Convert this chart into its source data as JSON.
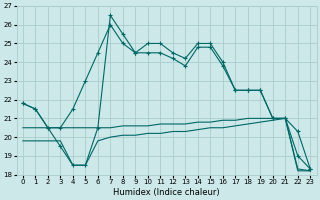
{
  "title": "",
  "xlabel": "Humidex (Indice chaleur)",
  "ylabel": "",
  "bg_color": "#cce8e8",
  "grid_color": "#aacccc",
  "line_color": "#006666",
  "xlim": [
    -0.5,
    23.5
  ],
  "ylim": [
    18,
    27
  ],
  "xticks": [
    0,
    1,
    2,
    3,
    4,
    5,
    6,
    7,
    8,
    9,
    10,
    11,
    12,
    13,
    14,
    15,
    16,
    17,
    18,
    19,
    20,
    21,
    22,
    23
  ],
  "yticks": [
    18,
    19,
    20,
    21,
    22,
    23,
    24,
    25,
    26,
    27
  ],
  "series1_x": [
    0,
    1,
    2,
    3,
    4,
    5,
    6,
    7,
    8,
    9,
    10,
    11,
    12,
    13,
    14,
    15,
    16,
    17,
    18,
    19,
    20,
    21,
    22,
    23
  ],
  "series1_y": [
    21.8,
    21.5,
    20.5,
    20.5,
    21.5,
    23.0,
    24.5,
    26.0,
    25.0,
    24.5,
    25.0,
    25.0,
    24.5,
    24.2,
    25.0,
    25.0,
    24.0,
    22.5,
    22.5,
    22.5,
    21.0,
    21.0,
    20.3,
    18.3
  ],
  "series2_x": [
    0,
    1,
    2,
    3,
    4,
    5,
    6,
    7,
    8,
    9,
    10,
    11,
    12,
    13,
    14,
    15,
    16,
    17,
    18,
    19,
    20,
    21,
    22,
    23
  ],
  "series2_y": [
    21.8,
    21.5,
    20.5,
    19.5,
    18.5,
    18.5,
    20.5,
    26.5,
    25.5,
    24.5,
    24.5,
    24.5,
    24.2,
    23.8,
    24.8,
    24.8,
    23.8,
    22.5,
    22.5,
    22.5,
    21.0,
    21.0,
    19.0,
    18.3
  ],
  "series3_x": [
    0,
    1,
    2,
    3,
    4,
    5,
    6,
    7,
    8,
    9,
    10,
    11,
    12,
    13,
    14,
    15,
    16,
    17,
    18,
    19,
    20,
    21,
    22,
    23
  ],
  "series3_y": [
    20.5,
    20.5,
    20.5,
    20.5,
    20.5,
    20.5,
    20.5,
    20.5,
    20.6,
    20.6,
    20.6,
    20.7,
    20.7,
    20.7,
    20.8,
    20.8,
    20.9,
    20.9,
    21.0,
    21.0,
    21.0,
    21.0,
    18.2,
    18.2
  ],
  "series4_x": [
    0,
    1,
    2,
    3,
    4,
    5,
    6,
    7,
    8,
    9,
    10,
    11,
    12,
    13,
    14,
    15,
    16,
    17,
    18,
    19,
    20,
    21,
    22,
    23
  ],
  "series4_y": [
    19.8,
    19.8,
    19.8,
    19.8,
    18.5,
    18.5,
    19.8,
    20.0,
    20.1,
    20.1,
    20.2,
    20.2,
    20.3,
    20.3,
    20.4,
    20.5,
    20.5,
    20.6,
    20.7,
    20.8,
    20.9,
    21.0,
    18.3,
    18.2
  ]
}
